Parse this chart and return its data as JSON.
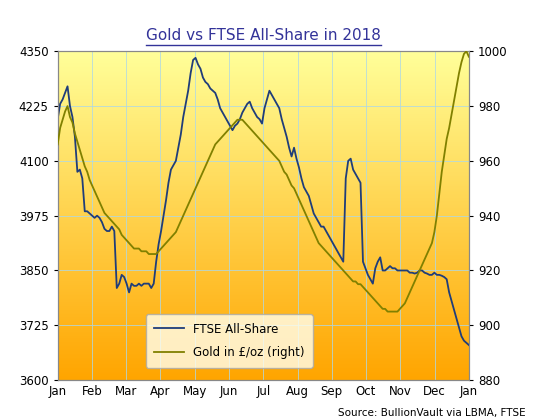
{
  "title": "Gold vs FTSE All-Share in 2018",
  "source_text": "Source: BullionVault via LBMA, FTSE",
  "ftse_color": "#1F3D7A",
  "gold_color": "#808000",
  "background_colors": [
    "#FFFF99",
    "#FFA500"
  ],
  "left_ylim": [
    3600,
    4350
  ],
  "right_ylim": [
    880,
    1000
  ],
  "left_yticks": [
    3600,
    3725,
    3850,
    3975,
    4100,
    4225,
    4350
  ],
  "right_yticks": [
    880,
    900,
    920,
    940,
    960,
    980,
    1000
  ],
  "month_labels": [
    "Jan",
    "Feb",
    "Mar",
    "Apr",
    "May",
    "Jun",
    "Jul",
    "Aug",
    "Sep",
    "Oct",
    "Nov",
    "Dec",
    "Jan"
  ],
  "legend_labels": [
    "FTSE All-Share",
    "Gold in £/oz (right)"
  ],
  "ftse_data": [
    4195,
    4230,
    4240,
    4255,
    4270,
    4225,
    4200,
    4155,
    4075,
    4080,
    4060,
    3985,
    3985,
    3980,
    3975,
    3970,
    3975,
    3970,
    3960,
    3945,
    3940,
    3940,
    3950,
    3940,
    3810,
    3820,
    3840,
    3835,
    3820,
    3800,
    3820,
    3815,
    3815,
    3820,
    3815,
    3820,
    3820,
    3820,
    3810,
    3820,
    3870,
    3910,
    3940,
    3975,
    4010,
    4050,
    4080,
    4090,
    4100,
    4130,
    4160,
    4200,
    4230,
    4260,
    4300,
    4330,
    4335,
    4320,
    4310,
    4290,
    4280,
    4275,
    4265,
    4260,
    4255,
    4240,
    4220,
    4210,
    4200,
    4190,
    4180,
    4170,
    4180,
    4185,
    4195,
    4210,
    4220,
    4230,
    4235,
    4220,
    4210,
    4200,
    4195,
    4185,
    4220,
    4240,
    4260,
    4250,
    4240,
    4230,
    4220,
    4195,
    4175,
    4155,
    4130,
    4110,
    4130,
    4105,
    4085,
    4060,
    4040,
    4030,
    4020,
    4000,
    3980,
    3970,
    3960,
    3950,
    3950,
    3940,
    3930,
    3920,
    3910,
    3900,
    3890,
    3880,
    3870,
    4060,
    4100,
    4105,
    4080,
    4070,
    4060,
    4050,
    3870,
    3855,
    3840,
    3830,
    3820,
    3855,
    3870,
    3880,
    3850,
    3850,
    3855,
    3860,
    3855,
    3855,
    3850,
    3850,
    3850,
    3850,
    3850,
    3845,
    3845,
    3843,
    3845,
    3850,
    3850,
    3845,
    3843,
    3840,
    3840,
    3845,
    3840,
    3840,
    3838,
    3835,
    3830,
    3800,
    3780,
    3760,
    3740,
    3720,
    3700,
    3690,
    3685,
    3680
  ],
  "gold_data": [
    966,
    972,
    975,
    978,
    980,
    976,
    974,
    970,
    967,
    964,
    961,
    958,
    956,
    953,
    951,
    949,
    947,
    945,
    943,
    941,
    940,
    939,
    938,
    937,
    936,
    935,
    933,
    932,
    931,
    930,
    929,
    928,
    928,
    928,
    927,
    927,
    927,
    926,
    926,
    926,
    926,
    927,
    928,
    929,
    930,
    931,
    932,
    933,
    934,
    936,
    938,
    940,
    942,
    944,
    946,
    948,
    950,
    952,
    954,
    956,
    958,
    960,
    962,
    964,
    966,
    967,
    968,
    969,
    970,
    971,
    972,
    973,
    974,
    975,
    975,
    975,
    974,
    973,
    972,
    971,
    970,
    969,
    968,
    967,
    966,
    965,
    964,
    963,
    962,
    961,
    960,
    958,
    956,
    955,
    953,
    951,
    950,
    948,
    946,
    944,
    942,
    940,
    938,
    936,
    934,
    932,
    930,
    929,
    928,
    927,
    926,
    925,
    924,
    923,
    922,
    921,
    920,
    919,
    918,
    917,
    916,
    916,
    915,
    915,
    914,
    913,
    912,
    911,
    910,
    909,
    908,
    907,
    906,
    906,
    905,
    905,
    905,
    905,
    905,
    906,
    907,
    908,
    910,
    912,
    914,
    916,
    918,
    920,
    922,
    924,
    926,
    928,
    930,
    934,
    940,
    948,
    956,
    962,
    968,
    972,
    977,
    982,
    987,
    992,
    996,
    999,
    1000,
    998
  ]
}
